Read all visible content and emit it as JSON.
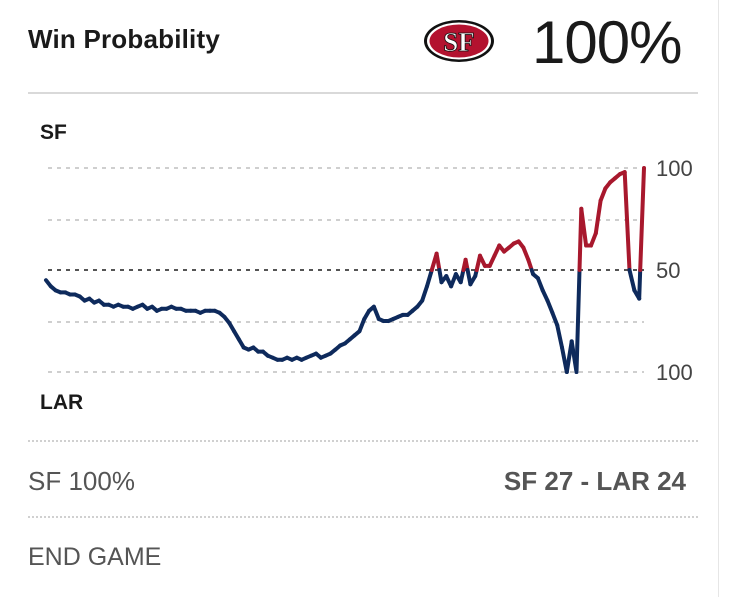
{
  "header": {
    "title": "Win Probability",
    "team_logo_text": "SF",
    "probability": "100%"
  },
  "chart_data": {
    "type": "line",
    "top_team": "SF",
    "bottom_team": "LAR",
    "ylim": [
      0,
      100
    ],
    "ytick_labels": [
      "100",
      "50",
      "100"
    ],
    "midline": 50,
    "colors": {
      "top_team": "#a8182d",
      "bottom_team": "#0e2a5c"
    },
    "series": [
      {
        "name": "SF win probability",
        "x": [
          0,
          1,
          2,
          3,
          4,
          5,
          6,
          7,
          8,
          9,
          10,
          11,
          12,
          13,
          14,
          15,
          16,
          17,
          18,
          19,
          20,
          21,
          22,
          23,
          24,
          25,
          26,
          27,
          28,
          29,
          30,
          31,
          32,
          33,
          34,
          35,
          36,
          37,
          38,
          39,
          40,
          41,
          42,
          43,
          44,
          45,
          46,
          47,
          48,
          49,
          50,
          51,
          52,
          53,
          54,
          55,
          56,
          57,
          58,
          59,
          60,
          61,
          62,
          63,
          64,
          65,
          66,
          67,
          68,
          69,
          70,
          71,
          72,
          73,
          74,
          75,
          76,
          77,
          78,
          79,
          80,
          81,
          82,
          83,
          84,
          85,
          86,
          87,
          88,
          89,
          90,
          91,
          92,
          93,
          94,
          95,
          96,
          97,
          98,
          99,
          100,
          101,
          102,
          103,
          104,
          105,
          106,
          107,
          108,
          109,
          110,
          111,
          112,
          113,
          114,
          115,
          116,
          117,
          118,
          119,
          120,
          121,
          122,
          123,
          124
        ],
        "values": [
          45,
          42,
          40,
          39,
          39,
          38,
          38,
          37,
          35,
          36,
          34,
          35,
          33,
          33,
          32,
          33,
          32,
          32,
          31,
          32,
          33,
          31,
          32,
          30,
          31,
          31,
          32,
          31,
          31,
          30,
          30,
          30,
          29,
          30,
          30,
          30,
          29,
          27,
          24,
          20,
          16,
          12,
          11,
          12,
          10,
          10,
          8,
          7,
          6,
          6,
          7,
          6,
          7,
          6,
          7,
          8,
          9,
          7,
          8,
          9,
          11,
          13,
          14,
          16,
          18,
          20,
          26,
          30,
          32,
          26,
          25,
          25,
          26,
          27,
          28,
          28,
          30,
          32,
          35,
          42,
          50,
          58,
          44,
          47,
          42,
          48,
          44,
          55,
          43,
          47,
          57,
          52,
          52,
          57,
          62,
          59,
          61,
          63,
          64,
          61,
          55,
          48,
          46,
          40,
          35,
          29,
          23,
          12,
          0,
          15,
          0,
          80,
          62,
          62,
          68,
          84,
          90,
          93,
          95,
          97,
          98,
          50,
          40,
          36,
          100
        ]
      }
    ]
  },
  "status": {
    "winner": "SF 100%",
    "team_a": "SF",
    "score_a": "27",
    "separator": " - ",
    "team_b": "LAR",
    "score_b": "24"
  },
  "footer": {
    "game_status": "END GAME"
  }
}
